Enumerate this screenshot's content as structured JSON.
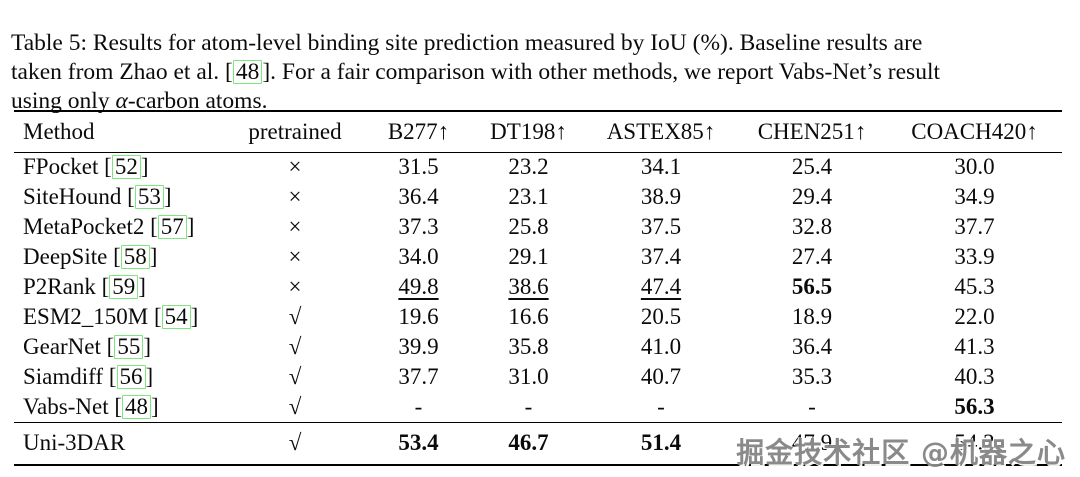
{
  "caption": {
    "lines": [
      {
        "segments": [
          {
            "t": "Table 5: Results for atom-level binding site prediction measured by IoU (%). Baseline results are",
            "s": "plain"
          }
        ]
      },
      {
        "segments": [
          {
            "t": "taken from Zhao et al. [",
            "s": "plain"
          },
          {
            "t": "48",
            "s": "box"
          },
          {
            "t": "]. For a fair comparison with other methods, we report Vabs-Net’s result",
            "s": "plain"
          }
        ]
      },
      {
        "segments": [
          {
            "t": "using only ",
            "s": "plain"
          },
          {
            "t": "α",
            "s": "italic"
          },
          {
            "t": "-carbon atoms.",
            "s": "plain"
          }
        ]
      }
    ]
  },
  "table": {
    "headers": [
      "Method",
      "pretrained",
      "B277↑",
      "DT198↑",
      "ASTEX85↑",
      "CHEN251↑",
      "COACH420↑"
    ],
    "rows": [
      {
        "method": "FPocket",
        "cite": "52",
        "pretrained": "×",
        "values": [
          {
            "v": "31.5"
          },
          {
            "v": "23.2"
          },
          {
            "v": "34.1"
          },
          {
            "v": "25.4"
          },
          {
            "v": "30.0"
          }
        ]
      },
      {
        "method": "SiteHound",
        "cite": "53",
        "pretrained": "×",
        "values": [
          {
            "v": "36.4"
          },
          {
            "v": "23.1"
          },
          {
            "v": "38.9"
          },
          {
            "v": "29.4"
          },
          {
            "v": "34.9"
          }
        ]
      },
      {
        "method": "MetaPocket2",
        "cite": "57",
        "pretrained": "×",
        "values": [
          {
            "v": "37.3"
          },
          {
            "v": "25.8"
          },
          {
            "v": "37.5"
          },
          {
            "v": "32.8"
          },
          {
            "v": "37.7"
          }
        ]
      },
      {
        "method": "DeepSite",
        "cite": "58",
        "pretrained": "×",
        "values": [
          {
            "v": "34.0"
          },
          {
            "v": "29.1"
          },
          {
            "v": "37.4"
          },
          {
            "v": "27.4"
          },
          {
            "v": "33.9"
          }
        ]
      },
      {
        "method": "P2Rank",
        "cite": "59",
        "pretrained": "×",
        "values": [
          {
            "v": "49.8",
            "underline": true
          },
          {
            "v": "38.6",
            "underline": true
          },
          {
            "v": "47.4",
            "underline": true
          },
          {
            "v": "56.5",
            "bold": true
          },
          {
            "v": "45.3"
          }
        ]
      },
      {
        "method": "ESM2_150M",
        "cite": "54",
        "pretrained": "√",
        "values": [
          {
            "v": "19.6"
          },
          {
            "v": "16.6"
          },
          {
            "v": "20.5"
          },
          {
            "v": "18.9"
          },
          {
            "v": "22.0"
          }
        ]
      },
      {
        "method": "GearNet",
        "cite": "55",
        "pretrained": "√",
        "values": [
          {
            "v": "39.9"
          },
          {
            "v": "35.8"
          },
          {
            "v": "41.0"
          },
          {
            "v": "36.4"
          },
          {
            "v": "41.3"
          }
        ]
      },
      {
        "method": "Siamdiff",
        "cite": "56",
        "pretrained": "√",
        "values": [
          {
            "v": "37.7"
          },
          {
            "v": "31.0"
          },
          {
            "v": "40.7"
          },
          {
            "v": "35.3"
          },
          {
            "v": "40.3"
          }
        ]
      },
      {
        "method": "Vabs-Net",
        "cite": "48",
        "pretrained": "√",
        "values": [
          {
            "v": "-"
          },
          {
            "v": "-"
          },
          {
            "v": "-"
          },
          {
            "v": "-"
          },
          {
            "v": "56.3",
            "bold": true
          }
        ]
      }
    ],
    "footer_rows": [
      {
        "method": "Uni-3DAR",
        "cite": null,
        "pretrained": "√",
        "values": [
          {
            "v": "53.4",
            "bold": true
          },
          {
            "v": "46.7",
            "bold": true
          },
          {
            "v": "51.4",
            "bold": true
          },
          {
            "v": "47.9"
          },
          {
            "v": "54.2"
          }
        ]
      }
    ]
  },
  "watermark": {
    "text": "掘金技术社区 @机器之心"
  },
  "colors": {
    "citation_box": "#7de77d",
    "rule": "#000000",
    "watermark_gray": "#808080"
  }
}
